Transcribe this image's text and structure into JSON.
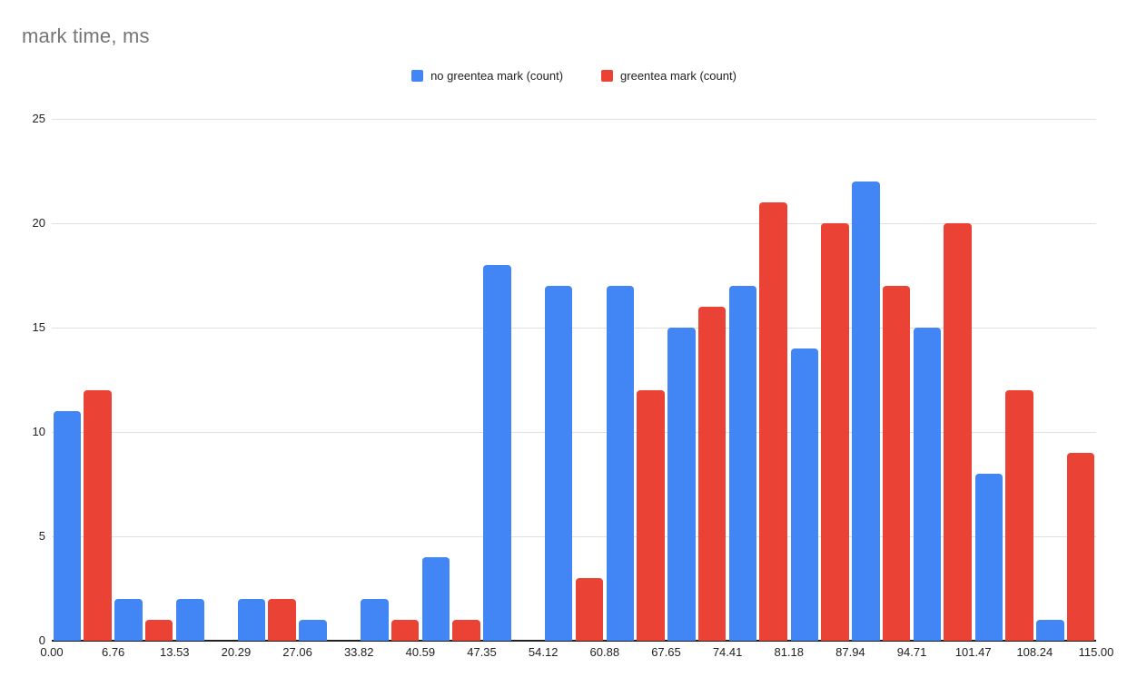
{
  "chart_data": {
    "type": "bar",
    "title": "mark time, ms",
    "xlabel": "",
    "ylabel": "",
    "ylim": [
      0,
      25
    ],
    "yticks": [
      0,
      5,
      10,
      15,
      20,
      25
    ],
    "grid": true,
    "legend_position": "top-center",
    "categories_are_bin_edges": true,
    "categories": [
      "0.00",
      "6.76",
      "13.53",
      "20.29",
      "27.06",
      "33.82",
      "40.59",
      "47.35",
      "54.12",
      "60.88",
      "67.65",
      "74.41",
      "81.18",
      "87.94",
      "94.71",
      "101.47",
      "108.24",
      "115.00"
    ],
    "series": [
      {
        "name": "no greentea mark (count)",
        "color": "#4285F4",
        "values": [
          11,
          2,
          2,
          2,
          1,
          2,
          4,
          18,
          17,
          17,
          15,
          17,
          14,
          22,
          15,
          8,
          1
        ]
      },
      {
        "name": "greentea mark (count)",
        "color": "#EA4335",
        "values": [
          12,
          1,
          0,
          2,
          0,
          1,
          1,
          0,
          3,
          12,
          16,
          21,
          20,
          17,
          20,
          12,
          9
        ]
      }
    ],
    "colors": {
      "title_text": "#757575",
      "tick_text": "#212121",
      "gridline": "#e0e0e0",
      "axis_line": "#212121",
      "background": "#ffffff"
    }
  }
}
